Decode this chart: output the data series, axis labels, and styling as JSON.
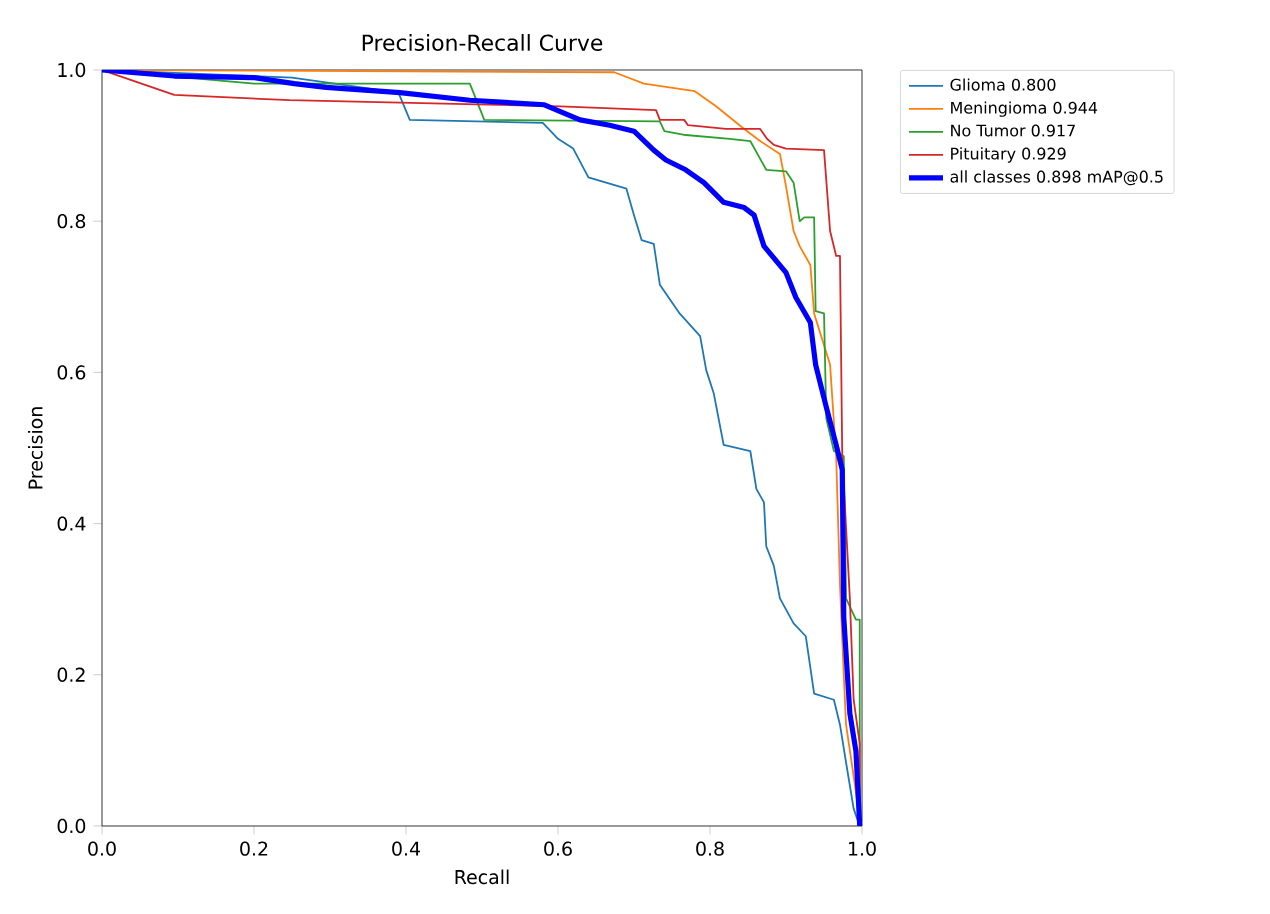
{
  "chart_data": {
    "type": "line",
    "title": "Precision-Recall Curve",
    "xlabel": "Recall",
    "ylabel": "Precision",
    "xlim": [
      0,
      1
    ],
    "ylim": [
      0,
      1
    ],
    "xticks": [
      {
        "value": 0,
        "label": "0.0"
      },
      {
        "value": 0.2,
        "label": "0.2"
      },
      {
        "value": 0.4,
        "label": "0.4"
      },
      {
        "value": 0.6,
        "label": "0.6"
      },
      {
        "value": 0.8,
        "label": "0.8"
      },
      {
        "value": 1,
        "label": "1.0"
      }
    ],
    "yticks": [
      {
        "value": 0,
        "label": "0.0"
      },
      {
        "value": 0.2,
        "label": "0.2"
      },
      {
        "value": 0.4,
        "label": "0.4"
      },
      {
        "value": 0.6,
        "label": "0.6"
      },
      {
        "value": 0.8,
        "label": "0.8"
      },
      {
        "value": 1,
        "label": "1.0"
      }
    ],
    "legend": "top right",
    "grid": false,
    "marker": "none",
    "line_style": "solid",
    "series": [
      {
        "name": "Glioma 0.800",
        "color": "#1f77b4",
        "x": [
          0,
          0.25,
          0.39,
          0.405,
          0.58,
          0.6,
          0.62,
          0.64,
          0.69,
          0.7,
          0.71,
          0.726,
          0.734,
          0.76,
          0.787,
          0.795,
          0.805,
          0.818,
          0.853,
          0.861,
          0.871,
          0.874,
          0.884,
          0.892,
          0.91,
          0.926,
          0.937,
          0.963,
          0.971,
          0.979,
          0.989,
          0.997
        ],
        "values": [
          1,
          0.99,
          0.97,
          0.934,
          0.93,
          0.909,
          0.896,
          0.858,
          0.843,
          0.808,
          0.775,
          0.77,
          0.716,
          0.678,
          0.648,
          0.603,
          0.572,
          0.504,
          0.496,
          0.446,
          0.428,
          0.37,
          0.344,
          0.301,
          0.268,
          0.251,
          0.175,
          0.167,
          0.134,
          0.084,
          0.023,
          0
        ]
      },
      {
        "name": "Meningioma 0.944",
        "color": "#ff7f0e",
        "x": [
          0,
          0.674,
          0.713,
          0.78,
          0.808,
          0.845,
          0.866,
          0.892,
          0.9,
          0.91,
          0.918,
          0.932,
          0.937,
          0.958,
          0.966,
          0.971,
          0.976,
          0.979,
          0.989,
          0.997
        ],
        "values": [
          1,
          0.997,
          0.982,
          0.972,
          0.952,
          0.922,
          0.906,
          0.889,
          0.846,
          0.787,
          0.767,
          0.742,
          0.678,
          0.61,
          0.489,
          0.319,
          0.2,
          0.134,
          0.066,
          0.008
        ]
      },
      {
        "name": "No Tumor 0.917",
        "color": "#2ca02c",
        "x": [
          0,
          0.2,
          0.484,
          0.503,
          0.734,
          0.74,
          0.768,
          0.826,
          0.853,
          0.874,
          0.9,
          0.91,
          0.918,
          0.924,
          0.937,
          0.939,
          0.95,
          0.953,
          0.963,
          0.976,
          0.979,
          0.992,
          0.997,
          0.997
        ],
        "values": [
          1,
          0.982,
          0.982,
          0.934,
          0.932,
          0.919,
          0.914,
          0.909,
          0.906,
          0.868,
          0.866,
          0.851,
          0.8,
          0.805,
          0.805,
          0.681,
          0.678,
          0.539,
          0.496,
          0.489,
          0.301,
          0.273,
          0.273,
          0
        ]
      },
      {
        "name": "Pituitary 0.929",
        "color": "#d62728",
        "x": [
          0,
          0.095,
          0.247,
          0.603,
          0.729,
          0.734,
          0.766,
          0.771,
          0.821,
          0.866,
          0.875,
          0.884,
          0.9,
          0.95,
          0.958,
          0.966,
          0.971,
          0.974,
          0.984,
          0.989,
          0.997,
          0.997
        ],
        "values": [
          1,
          0.967,
          0.96,
          0.952,
          0.947,
          0.934,
          0.934,
          0.927,
          0.922,
          0.922,
          0.909,
          0.901,
          0.896,
          0.894,
          0.787,
          0.754,
          0.754,
          0.489,
          0.301,
          0.167,
          0.109,
          0
        ]
      },
      {
        "name": "all classes 0.898 mAP@0.5",
        "color": "#0000ff",
        "x": [
          0,
          0.095,
          0.2,
          0.253,
          0.295,
          0.392,
          0.484,
          0.582,
          0.629,
          0.668,
          0.7,
          0.726,
          0.742,
          0.768,
          0.792,
          0.818,
          0.845,
          0.858,
          0.871,
          0.9,
          0.913,
          0.932,
          0.939,
          0.953,
          0.966,
          0.974,
          0.976,
          0.984,
          0.992,
          0.997
        ],
        "values": [
          1,
          0.992,
          0.99,
          0.982,
          0.977,
          0.97,
          0.96,
          0.954,
          0.934,
          0.927,
          0.919,
          0.894,
          0.881,
          0.868,
          0.851,
          0.825,
          0.818,
          0.808,
          0.767,
          0.732,
          0.699,
          0.666,
          0.61,
          0.554,
          0.504,
          0.471,
          0.276,
          0.149,
          0.099,
          0
        ]
      }
    ]
  }
}
